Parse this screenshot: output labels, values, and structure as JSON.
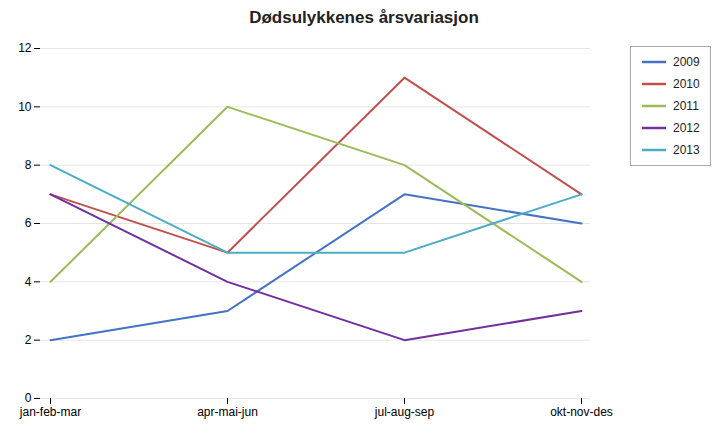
{
  "chart_data": {
    "type": "line",
    "title": "Dødsulykkenes årsvariasjon",
    "categories": [
      "jan-feb-mar",
      "apr-mai-jun",
      "jul-aug-sep",
      "okt-nov-des"
    ],
    "series": [
      {
        "name": "2009",
        "color": "#4472C4",
        "values": [
          2,
          3,
          7,
          6
        ]
      },
      {
        "name": "2010",
        "color": "#C0504D",
        "values": [
          7,
          5,
          11,
          7
        ]
      },
      {
        "name": "2011",
        "color": "#9BBB59",
        "values": [
          4,
          10,
          8,
          4
        ]
      },
      {
        "name": "2012",
        "color": "#7030A0",
        "values": [
          7,
          4,
          2,
          3
        ]
      },
      {
        "name": "2013",
        "color": "#4BACC6",
        "values": [
          8,
          5,
          5,
          7
        ]
      }
    ],
    "ylim": [
      0,
      12
    ],
    "yticks": [
      0,
      2,
      4,
      6,
      8,
      10,
      12
    ],
    "grid": true,
    "legend": "right"
  }
}
